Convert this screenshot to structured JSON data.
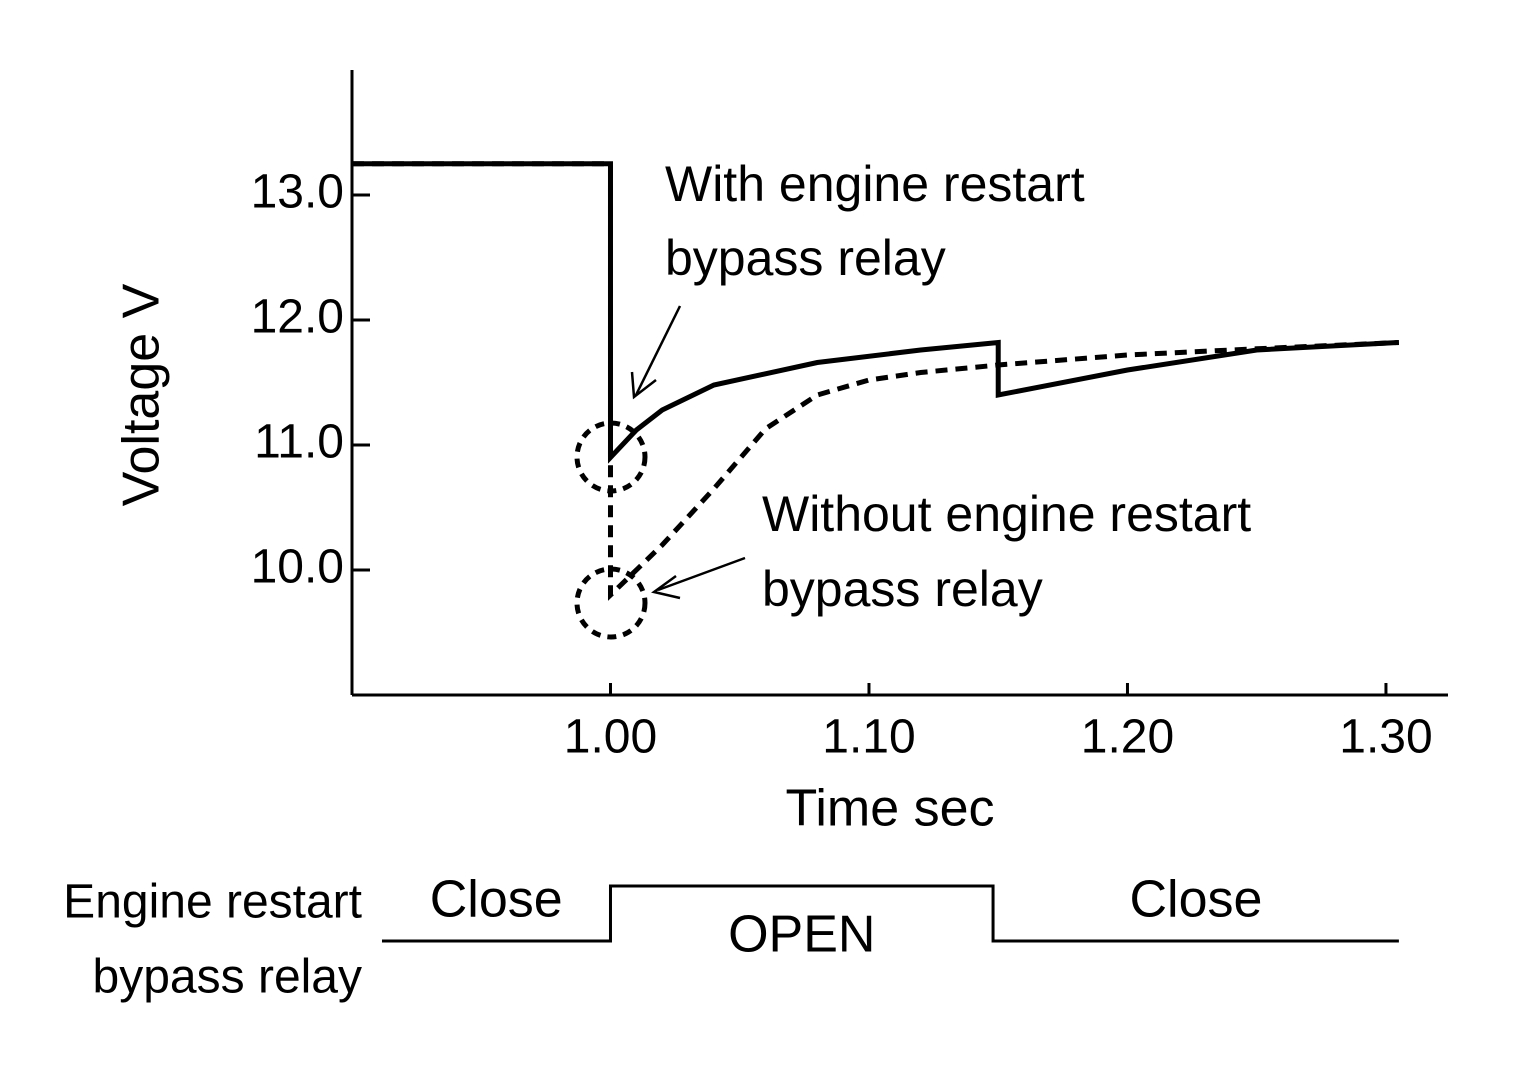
{
  "chart_data": {
    "type": "line",
    "x_label": "Time sec",
    "y_label": "Voltage  V",
    "xlim": [
      0.9,
      1.324
    ],
    "ylim": [
      9.0,
      14.0
    ],
    "xticks": [
      {
        "value": 1.0,
        "label": "1.00"
      },
      {
        "value": 1.1,
        "label": "1.10"
      },
      {
        "value": 1.2,
        "label": "1.20"
      },
      {
        "value": 1.3,
        "label": "1.30"
      }
    ],
    "yticks": [
      {
        "value": 10,
        "label": "10.0"
      },
      {
        "value": 11,
        "label": "11.0"
      },
      {
        "value": 12,
        "label": "12.0"
      },
      {
        "value": 13,
        "label": "13.0"
      }
    ],
    "series": [
      {
        "name": "With engine restart bypass relay",
        "color": "#000000",
        "dash": false,
        "x": [
          0.9,
          1.0,
          1.0,
          1.01,
          1.02,
          1.04,
          1.08,
          1.12,
          1.15,
          1.15,
          1.2,
          1.25,
          1.305
        ],
        "values": [
          13.25,
          13.25,
          10.9,
          11.12,
          11.28,
          11.48,
          11.66,
          11.76,
          11.82,
          11.4,
          11.6,
          11.76,
          11.82
        ]
      },
      {
        "name": "Without engine restart bypass relay",
        "color": "#000000",
        "dash": true,
        "x": [
          0.9,
          1.0,
          1.0,
          1.02,
          1.04,
          1.06,
          1.08,
          1.1,
          1.12,
          1.15,
          1.2,
          1.25,
          1.305
        ],
        "values": [
          13.25,
          13.25,
          9.8,
          10.2,
          10.65,
          11.13,
          11.4,
          11.52,
          11.58,
          11.64,
          11.72,
          11.77,
          11.82
        ]
      }
    ],
    "annotations": [
      {
        "lines": [
          "With engine restart",
          "bypass relay"
        ]
      },
      {
        "lines": [
          "Without engine restart",
          "bypass relay"
        ]
      }
    ],
    "relay": {
      "label": [
        "Engine restart",
        "bypass relay"
      ],
      "states": [
        {
          "label": "Close",
          "start": 0.9116,
          "end": 1.0,
          "level": "low"
        },
        {
          "label": "OPEN",
          "start": 1.0,
          "end": 1.148,
          "level": "high"
        },
        {
          "label": "Close",
          "start": 1.148,
          "end": 1.305,
          "level": "low"
        }
      ]
    }
  }
}
